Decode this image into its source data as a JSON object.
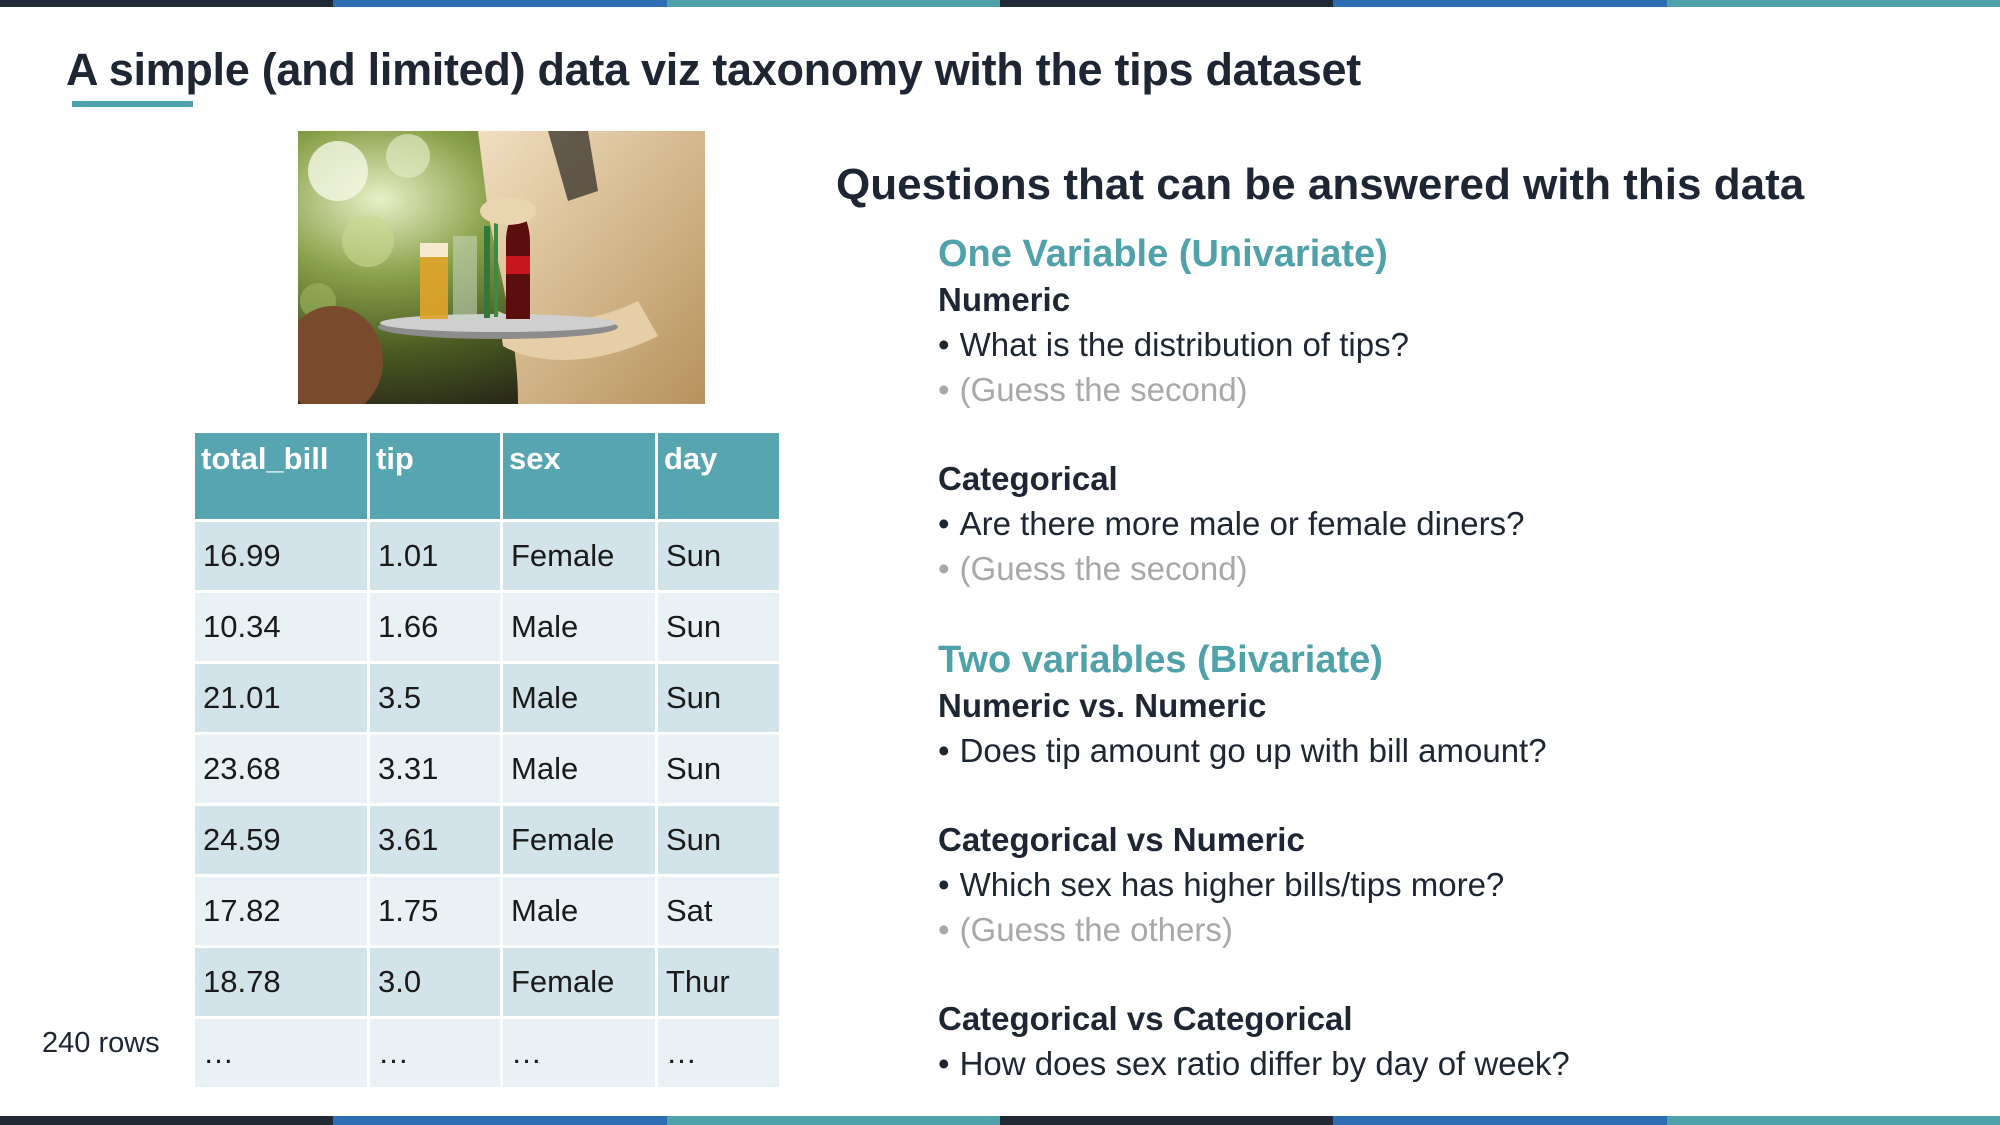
{
  "title": "A simple (and limited) data viz taxonomy with the tips dataset",
  "colors": {
    "accent_teal": "#4fa1aa",
    "header_teal": "#57a5b0",
    "stripe_dark": "#222a35",
    "stripe_blue": "#2e6db4"
  },
  "photo": {
    "icon": "waiter-serving-drinks-photo"
  },
  "table": {
    "columns": [
      "total_bill",
      "tip",
      "sex",
      "day"
    ],
    "rows": [
      [
        "16.99",
        "1.01",
        "Female",
        "Sun"
      ],
      [
        "10.34",
        "1.66",
        "Male",
        "Sun"
      ],
      [
        "21.01",
        "3.5",
        "Male",
        "Sun"
      ],
      [
        "23.68",
        "3.31",
        "Male",
        "Sun"
      ],
      [
        "24.59",
        "3.61",
        "Female",
        "Sun"
      ],
      [
        "17.82",
        "1.75",
        "Male",
        "Sat"
      ],
      [
        "18.78",
        "3.0",
        "Female",
        "Thur"
      ],
      [
        "…",
        "…",
        "…",
        "…"
      ]
    ],
    "rows_label": "240 rows"
  },
  "questions": {
    "heading": "Questions that can be answered with this data",
    "univariate": {
      "title": "One Variable (Univariate)",
      "numeric": {
        "label": "Numeric",
        "q1": "What is the distribution of tips?",
        "q2": "(Guess the second)"
      },
      "categorical": {
        "label": "Categorical",
        "q1": "Are there more male or female diners?",
        "q2": "(Guess the second)"
      }
    },
    "bivariate": {
      "title": "Two variables (Bivariate)",
      "num_num": {
        "label": "Numeric vs. Numeric",
        "q1": "Does tip amount go up with bill amount?"
      },
      "cat_num": {
        "label": "Categorical vs Numeric",
        "q1": "Which sex has higher bills/tips more?",
        "q2": "(Guess the others)"
      },
      "cat_cat": {
        "label": "Categorical vs Categorical",
        "q1": "How does sex ratio differ by day of week?"
      }
    }
  }
}
